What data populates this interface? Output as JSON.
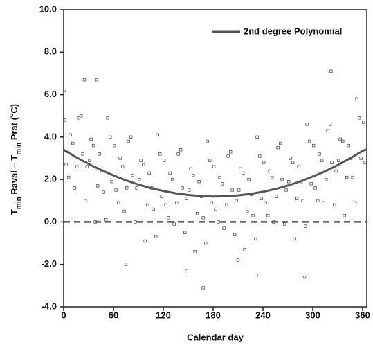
{
  "chart_data": {
    "type": "scatter",
    "x_label": "Calendar day",
    "y_label": [
      "T",
      "min",
      " Raval – T",
      "min",
      " Prat (",
      "o",
      "C)"
    ],
    "xlim": [
      0,
      365
    ],
    "ylim": [
      -4,
      10
    ],
    "xticks": [
      0,
      60,
      120,
      180,
      240,
      300,
      360
    ],
    "yticks": [
      {
        "value": -4,
        "label": "-4.0"
      },
      {
        "value": -2,
        "label": "-2.0"
      },
      {
        "value": 0,
        "label": "0.0"
      },
      {
        "value": 2,
        "label": "2.0"
      },
      {
        "value": 4,
        "label": "4.0"
      },
      {
        "value": 6,
        "label": "6.0"
      },
      {
        "value": 8,
        "label": "8.0"
      },
      {
        "value": 10,
        "label": "10.0"
      }
    ],
    "zero_line": 0,
    "marker_color": "#555555",
    "x": [
      1,
      6,
      11,
      16,
      21,
      26,
      31,
      36,
      41,
      46,
      51,
      56,
      61,
      66,
      71,
      76,
      81,
      86,
      91,
      96,
      101,
      106,
      111,
      116,
      121,
      126,
      131,
      136,
      141,
      146,
      151,
      156,
      161,
      166,
      171,
      176,
      181,
      186,
      191,
      196,
      201,
      206,
      211,
      216,
      221,
      226,
      231,
      236,
      241,
      246,
      251,
      256,
      261,
      266,
      271,
      276,
      281,
      286,
      291,
      296,
      301,
      306,
      311,
      316,
      321,
      326,
      331,
      336,
      341,
      346,
      351,
      356,
      361,
      3,
      8,
      13,
      18,
      23,
      28,
      33,
      38,
      43,
      48,
      53,
      58,
      63,
      68,
      73,
      78,
      83,
      88,
      93,
      98,
      103,
      108,
      113,
      118,
      123,
      128,
      133,
      138,
      143,
      148,
      153,
      158,
      163,
      168,
      173,
      178,
      183,
      188,
      193,
      198,
      203,
      208,
      213,
      218,
      223,
      228,
      233,
      238,
      243,
      248,
      253,
      258,
      263,
      268,
      273,
      278,
      283,
      288,
      293,
      298,
      303,
      308,
      313,
      318,
      323,
      328,
      333,
      338,
      343,
      348,
      353,
      358,
      363,
      25,
      40,
      322,
      168,
      75,
      148,
      210,
      232,
      290,
      1
    ],
    "values": [
      4.8,
      2.1,
      3.7,
      2.6,
      5.0,
      1.0,
      2.9,
      3.6,
      1.7,
      2.4,
      0.1,
      4.0,
      3.6,
      0.9,
      2.6,
      1.6,
      4.0,
      0.0,
      2.0,
      2.7,
      0.8,
      1.6,
      -0.7,
      3.2,
      2.9,
      0.2,
      2.0,
      0.9,
      3.4,
      -0.5,
      1.5,
      2.2,
      0.4,
      1.2,
      -1.0,
      2.9,
      2.6,
      0.0,
      1.8,
      0.8,
      3.3,
      -0.6,
      1.5,
      2.3,
      0.5,
      1.3,
      -0.8,
      3.1,
      2.8,
      0.3,
      2.1,
      1.2,
      3.7,
      -0.1,
      1.9,
      2.8,
      1.1,
      1.9,
      -0.2,
      3.8,
      3.6,
      1.0,
      2.9,
      2.0,
      4.6,
      0.8,
      2.9,
      3.8,
      2.1,
      3.0,
      0.9,
      4.9,
      4.7,
      2.7,
      4.1,
      1.6,
      4.9,
      3.2,
      2.6,
      3.9,
      0.0,
      3.2,
      1.4,
      4.9,
      1.9,
      1.5,
      3.0,
      0.5,
      3.8,
      2.2,
      1.6,
      2.9,
      -0.9,
      2.3,
      0.6,
      4.1,
      1.2,
      0.8,
      2.3,
      -0.1,
      3.2,
      1.6,
      1.1,
      2.5,
      -1.4,
      1.9,
      0.2,
      3.8,
      0.9,
      0.6,
      2.1,
      -0.3,
      3.1,
      1.5,
      1.0,
      2.5,
      -1.3,
      2.0,
      0.3,
      4.0,
      1.1,
      0.9,
      2.4,
      0.0,
      3.5,
      2.0,
      1.5,
      3.0,
      -0.8,
      2.6,
      1.0,
      4.6,
      1.8,
      1.6,
      3.2,
      0.9,
      4.3,
      2.8,
      2.4,
      3.9,
      0.3,
      3.6,
      2.1,
      5.8,
      3.0,
      2.8,
      6.7,
      6.7,
      7.1,
      -3.1,
      -2.0,
      -2.3,
      -1.8,
      -2.5,
      -2.6,
      6.2
    ],
    "series": [
      {
        "name": "2nd degree Polynomial",
        "color": "#555555",
        "x": [
          0,
          15,
          30,
          45,
          60,
          75,
          90,
          105,
          120,
          135,
          150,
          165,
          180,
          195,
          210,
          225,
          240,
          255,
          270,
          285,
          300,
          315,
          330,
          345,
          360,
          365
        ],
        "values": [
          3.4,
          3.05,
          2.73,
          2.45,
          2.19,
          1.96,
          1.76,
          1.59,
          1.46,
          1.35,
          1.27,
          1.22,
          1.2,
          1.21,
          1.25,
          1.32,
          1.42,
          1.55,
          1.71,
          1.91,
          2.14,
          2.39,
          2.68,
          3.0,
          3.35,
          3.42
        ]
      }
    ]
  }
}
